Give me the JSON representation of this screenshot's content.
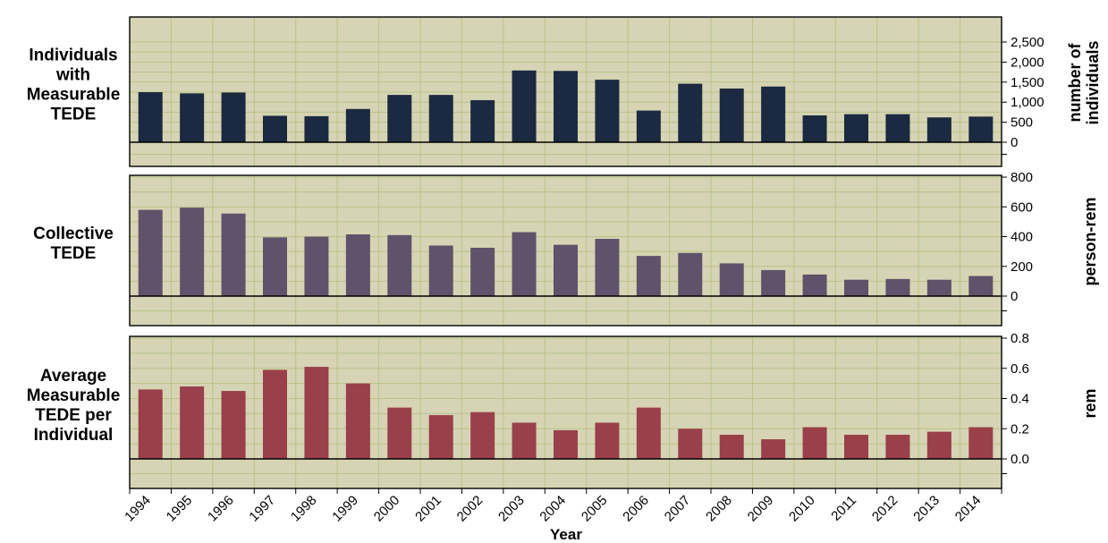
{
  "chart_data": {
    "type": "bar",
    "x_title": "Year",
    "categories": [
      "1994",
      "1995",
      "1996",
      "1997",
      "1998",
      "1999",
      "2000",
      "2001",
      "2002",
      "2003",
      "2004",
      "2005",
      "2006",
      "2007",
      "2008",
      "2009",
      "2010",
      "2011",
      "2012",
      "2013",
      "2014"
    ],
    "panels": [
      {
        "type": "bar",
        "label_lines": [
          "Individuals",
          "with",
          "Measurable",
          "TEDE"
        ],
        "unit_lines": [
          "number of",
          "individuals"
        ],
        "color": "#1b2a40",
        "ylim": [
          0,
          2500
        ],
        "y_ticks": [
          0,
          500,
          1000,
          1500,
          2000,
          2500
        ],
        "y_tick_labels": [
          "0",
          "500",
          "1,000",
          "1,500",
          "2,000",
          "2,500"
        ],
        "values": [
          1250,
          1220,
          1240,
          660,
          650,
          830,
          1180,
          1180,
          1050,
          1790,
          1780,
          1560,
          790,
          1460,
          1340,
          1390,
          670,
          700,
          700,
          620,
          640
        ]
      },
      {
        "type": "bar",
        "label_lines": [
          "Collective",
          "TEDE"
        ],
        "unit_lines": [
          "person-rem"
        ],
        "color": "#60526a",
        "ylim": [
          0,
          800
        ],
        "y_ticks": [
          0,
          200,
          400,
          600,
          800
        ],
        "y_tick_labels": [
          "0",
          "200",
          "400",
          "600",
          "800"
        ],
        "values": [
          580,
          595,
          555,
          395,
          400,
          415,
          410,
          340,
          325,
          430,
          345,
          385,
          270,
          290,
          220,
          175,
          145,
          110,
          115,
          110,
          135
        ]
      },
      {
        "type": "bar",
        "label_lines": [
          "Average",
          "Measurable",
          "TEDE per",
          "Individual"
        ],
        "unit_lines": [
          "rem"
        ],
        "color": "#99404a",
        "ylim": [
          0,
          0.8
        ],
        "y_ticks": [
          0,
          0.2,
          0.4,
          0.6,
          0.8
        ],
        "y_tick_labels": [
          "0.0",
          "0.2",
          "0.4",
          "0.6",
          "0.8"
        ],
        "values": [
          0.46,
          0.48,
          0.45,
          0.59,
          0.61,
          0.5,
          0.34,
          0.29,
          0.31,
          0.24,
          0.19,
          0.24,
          0.34,
          0.2,
          0.16,
          0.13,
          0.21,
          0.16,
          0.16,
          0.18,
          0.21
        ]
      }
    ],
    "grid": true,
    "plot_background": "#d6d4b4",
    "grid_color": "#b8c48a"
  }
}
